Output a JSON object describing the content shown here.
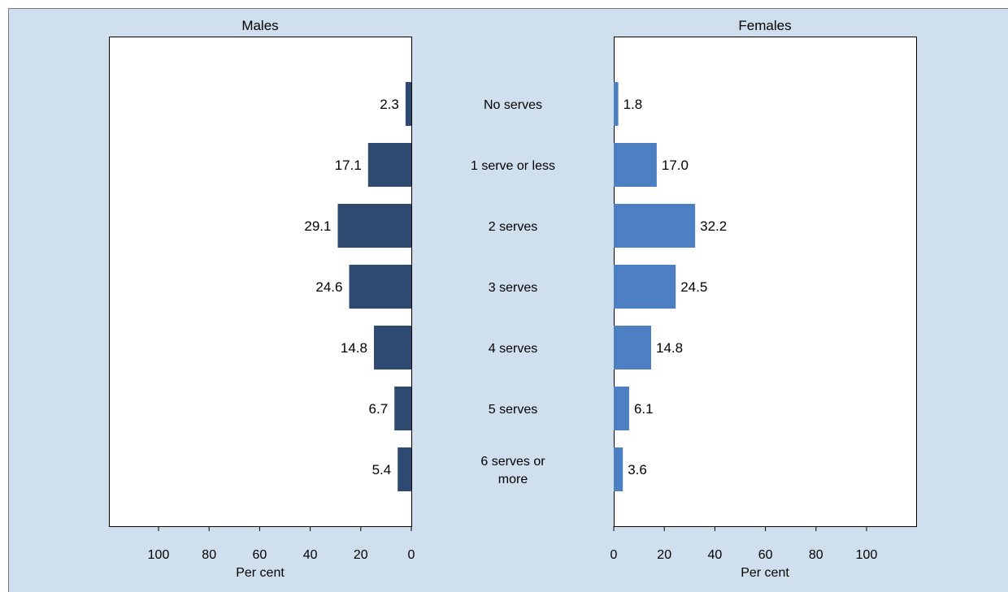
{
  "chart_data": {
    "type": "bar",
    "orientation": "horizontal",
    "layout": "back-to-back",
    "categories": [
      "No serves",
      "1 serve or less",
      "2 serves",
      "3 serves",
      "4 serves",
      "5 serves",
      "6 serves or more"
    ],
    "category_lines": [
      [
        "No serves"
      ],
      [
        "1 serve or less"
      ],
      [
        "2 serves"
      ],
      [
        "3 serves"
      ],
      [
        "4 serves"
      ],
      [
        "5 serves"
      ],
      [
        "6 serves or",
        "more"
      ]
    ],
    "series": [
      {
        "name": "Males",
        "values": [
          2.3,
          17.1,
          29.1,
          24.6,
          14.8,
          6.7,
          5.4
        ],
        "value_labels": [
          "2.3",
          "17.1",
          "29.1",
          "24.6",
          "14.8",
          "6.7",
          "5.4"
        ],
        "color": "#2e4a70"
      },
      {
        "name": "Females",
        "values": [
          1.8,
          17.0,
          32.2,
          24.5,
          14.8,
          6.1,
          3.6
        ],
        "value_labels": [
          "1.8",
          "17.0",
          "32.2",
          "24.5",
          "14.8",
          "6.1",
          "3.6"
        ],
        "color": "#4d80c2"
      }
    ],
    "xlabel": "Per cent",
    "xlim": [
      0,
      120
    ],
    "xticks": [
      0,
      20,
      40,
      60,
      80,
      100
    ],
    "grid": false,
    "legend": "none",
    "background_color": "#d0dfee",
    "plot_background_color": "#ffffff"
  }
}
